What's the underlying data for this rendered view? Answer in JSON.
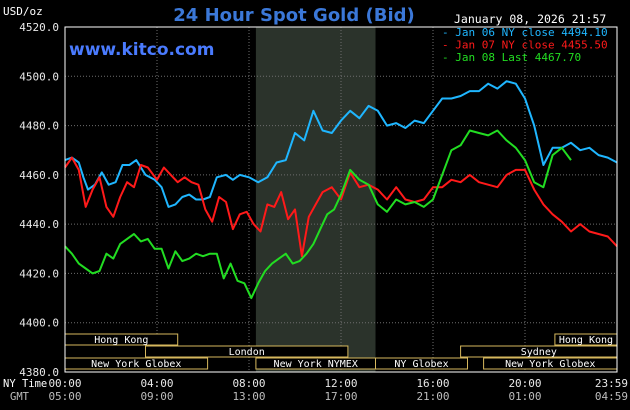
{
  "colors": {
    "background": "#000000",
    "plot_border": "#ffffff",
    "grid": "#6e6e6e",
    "title": "#3b78d8",
    "website": "#4a7bff",
    "text": "#ffffff",
    "axis_text": "#e8e8e8",
    "gmt_text": "#bdbdbd",
    "session_box_fill": "#d6b85e",
    "session_box_text": "#000000",
    "shade": "#2b332b",
    "series_jan06": "#1fb6ff",
    "series_jan07": "#ff1a1a",
    "series_jan08": "#22dd22"
  },
  "header": {
    "unit_label": "USD/oz",
    "title": "24 Hour Spot Gold (Bid)",
    "timestamp": "January 08, 2026 21:57",
    "website": "www.kitco.com"
  },
  "footer": {
    "ny_time_label": "NY Time",
    "gmt_label": "GMT"
  },
  "chart_data": {
    "type": "line",
    "title": "24 Hour Spot Gold (Bid)",
    "ylabel": "USD/oz",
    "ylim": [
      4380,
      4520
    ],
    "y_ticks": [
      "4520.0",
      "4500.0",
      "4480.0",
      "4460.0",
      "4440.0",
      "4420.0",
      "4400.0",
      "4380.0"
    ],
    "y_tick_values": [
      4520,
      4500,
      4480,
      4460,
      4440,
      4420,
      4400,
      4380
    ],
    "x_range_hours": [
      0,
      24
    ],
    "x_ticks_ny": [
      "00:00",
      "04:00",
      "08:00",
      "12:00",
      "16:00",
      "20:00",
      "23:59"
    ],
    "x_ticks_gmt": [
      "05:00",
      "09:00",
      "13:00",
      "17:00",
      "21:00",
      "01:00",
      "04:59"
    ],
    "x_tick_hours": [
      0,
      4,
      8,
      12,
      16,
      20,
      24
    ],
    "shaded_hours": [
      8.3,
      13.5
    ],
    "grid": true,
    "legend_position": "top-right",
    "legend": [
      {
        "label": "Jan 06 NY close",
        "value": "4494.10",
        "color": "#1fb6ff"
      },
      {
        "label": "Jan 07 NY close",
        "value": "4455.50",
        "color": "#ff1a1a"
      },
      {
        "label": "Jan 08 Last",
        "value": "4467.70",
        "color": "#22dd22"
      }
    ],
    "series": [
      {
        "name": "Jan 06 NY close",
        "color": "#1fb6ff",
        "x": [
          0,
          0.3,
          0.6,
          0.8,
          1.0,
          1.3,
          1.6,
          1.9,
          2.2,
          2.5,
          2.8,
          3.1,
          3.5,
          3.9,
          4.2,
          4.5,
          4.8,
          5.1,
          5.4,
          5.7,
          6.0,
          6.3,
          6.6,
          7.0,
          7.3,
          7.6,
          8.0,
          8.4,
          8.8,
          9.2,
          9.6,
          10.0,
          10.4,
          10.8,
          11.2,
          11.6,
          12.0,
          12.4,
          12.8,
          13.2,
          13.6,
          14.0,
          14.4,
          14.8,
          15.2,
          15.6,
          16.0,
          16.4,
          16.8,
          17.2,
          17.6,
          18.0,
          18.4,
          18.8,
          19.2,
          19.6,
          20.0,
          20.4,
          20.8,
          21.2,
          21.6,
          22.0,
          22.4,
          22.8,
          23.2,
          23.6,
          24.0
        ],
        "y": [
          4466,
          4467,
          4465,
          4459,
          4454,
          4456,
          4461,
          4456,
          4457,
          4464,
          4464,
          4466,
          4460,
          4458,
          4455,
          4447,
          4448,
          4451,
          4452,
          4450,
          4450,
          4451,
          4459,
          4460,
          4458,
          4460,
          4459,
          4457,
          4459,
          4465,
          4466,
          4477,
          4474,
          4486,
          4478,
          4477,
          4482,
          4486,
          4483,
          4488,
          4486,
          4480,
          4481,
          4479,
          4482,
          4481,
          4486,
          4491,
          4491,
          4492,
          4494,
          4494,
          4497,
          4495,
          4498,
          4497,
          4491,
          4480,
          4464,
          4471,
          4471,
          4473,
          4470,
          4471,
          4468,
          4467,
          4465
        ]
      },
      {
        "name": "Jan 07 NY close",
        "color": "#ff1a1a",
        "x": [
          0,
          0.3,
          0.6,
          0.9,
          1.2,
          1.5,
          1.8,
          2.1,
          2.4,
          2.7,
          3.0,
          3.3,
          3.6,
          4.0,
          4.3,
          4.6,
          4.9,
          5.2,
          5.5,
          5.8,
          6.1,
          6.4,
          6.7,
          7.0,
          7.3,
          7.6,
          7.9,
          8.2,
          8.5,
          8.8,
          9.1,
          9.4,
          9.7,
          10.0,
          10.3,
          10.6,
          10.9,
          11.2,
          11.6,
          12.0,
          12.4,
          12.8,
          13.2,
          13.6,
          14.0,
          14.4,
          14.8,
          15.2,
          15.6,
          16.0,
          16.4,
          16.8,
          17.2,
          17.6,
          18.0,
          18.4,
          18.8,
          19.2,
          19.6,
          20.0,
          20.4,
          20.8,
          21.2,
          21.6,
          22.0,
          22.4,
          22.8,
          23.2,
          23.6,
          24.0
        ],
        "y": [
          4463,
          4467,
          4462,
          4447,
          4454,
          4459,
          4447,
          4443,
          4451,
          4457,
          4455,
          4464,
          4463,
          4458,
          4463,
          4460,
          4457,
          4459,
          4457,
          4456,
          4446,
          4441,
          4451,
          4449,
          4438,
          4444,
          4445,
          4440,
          4437,
          4448,
          4447,
          4453,
          4442,
          4446,
          4427,
          4443,
          4448,
          4453,
          4455,
          4450,
          4461,
          4455,
          4456,
          4454,
          4450,
          4455,
          4450,
          4449,
          4450,
          4455,
          4455,
          4458,
          4457,
          4460,
          4457,
          4456,
          4455,
          4460,
          4462,
          4462,
          4454,
          4448,
          4444,
          4441,
          4437,
          4440,
          4437,
          4436,
          4435,
          4431
        ]
      },
      {
        "name": "Jan 08 Last",
        "color": "#22dd22",
        "x": [
          0,
          0.3,
          0.6,
          0.9,
          1.2,
          1.5,
          1.8,
          2.1,
          2.4,
          2.7,
          3.0,
          3.3,
          3.6,
          3.9,
          4.2,
          4.5,
          4.8,
          5.1,
          5.4,
          5.7,
          6.0,
          6.3,
          6.6,
          6.9,
          7.2,
          7.5,
          7.8,
          8.1,
          8.4,
          8.7,
          9.0,
          9.3,
          9.6,
          9.9,
          10.2,
          10.5,
          10.8,
          11.1,
          11.4,
          11.7,
          12.0,
          12.4,
          12.8,
          13.2,
          13.6,
          14.0,
          14.4,
          14.8,
          15.2,
          15.6,
          16.0,
          16.4,
          16.8,
          17.2,
          17.6,
          18.0,
          18.4,
          18.8,
          19.2,
          19.6,
          20.0,
          20.4,
          20.8,
          21.2,
          21.6,
          22.0
        ],
        "y": [
          4431,
          4428,
          4424,
          4422,
          4420,
          4421,
          4428,
          4426,
          4432,
          4434,
          4436,
          4433,
          4434,
          4430,
          4430,
          4422,
          4429,
          4425,
          4426,
          4428,
          4427,
          4428,
          4428,
          4418,
          4424,
          4417,
          4416,
          4410,
          4416,
          4421,
          4424,
          4426,
          4428,
          4424,
          4425,
          4428,
          4432,
          4438,
          4444,
          4446,
          4452,
          4462,
          4458,
          4456,
          4448,
          4445,
          4450,
          4448,
          4449,
          4447,
          4450,
          4460,
          4470,
          4472,
          4478,
          4477,
          4476,
          4478,
          4474,
          4471,
          4466,
          4457,
          4455,
          4468,
          4471,
          4466
        ]
      }
    ]
  },
  "sessions": [
    {
      "label": "Hong Kong",
      "row": 0,
      "segments": [
        [
          0,
          4.9
        ]
      ]
    },
    {
      "label": "Hong Kong",
      "row": 0,
      "segments": [
        [
          21.3,
          24
        ]
      ]
    },
    {
      "label": "London",
      "row": 1,
      "segments": [
        [
          3.5,
          12.3
        ]
      ]
    },
    {
      "label": "Sydney",
      "row": 1,
      "segments": [
        [
          17.2,
          24
        ]
      ]
    },
    {
      "label": "New York Globex",
      "row": 2,
      "segments": [
        [
          0,
          6.2
        ]
      ]
    },
    {
      "label": "New York NYMEX",
      "row": 2,
      "segments": [
        [
          8.3,
          13.5
        ]
      ]
    },
    {
      "label": "NY Globex",
      "row": 2,
      "segments": [
        [
          13.5,
          17.5
        ]
      ]
    },
    {
      "label": "New York Globex",
      "row": 2,
      "segments": [
        [
          18.2,
          24
        ]
      ]
    }
  ]
}
